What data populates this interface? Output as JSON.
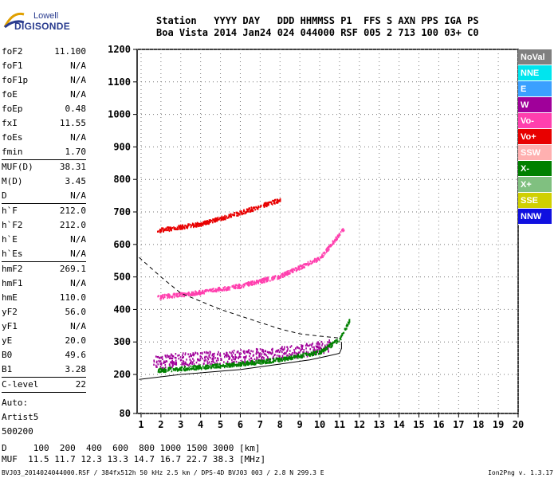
{
  "logo": {
    "line1": "Lowell",
    "line2": "DIGISONDE"
  },
  "header": {
    "line1": "Station   YYYY DAY   DDD HHMMSS P1  FFS S AXN PPS IGA PS",
    "line2": "Boa Vista 2014 Jan24 024 044000 RSF 005 2 713 100 03+ C0"
  },
  "params": [
    [
      {
        "k": "foF2",
        "v": "11.100"
      },
      {
        "k": "foF1",
        "v": "N/A"
      },
      {
        "k": "foF1p",
        "v": "N/A"
      },
      {
        "k": "foE",
        "v": "N/A"
      },
      {
        "k": "foEp",
        "v": "0.48"
      },
      {
        "k": "fxI",
        "v": "11.55"
      },
      {
        "k": "foEs",
        "v": "N/A"
      },
      {
        "k": "fmin",
        "v": "1.70"
      }
    ],
    [
      {
        "k": "MUF(D)",
        "v": "38.31"
      },
      {
        "k": "M(D)",
        "v": "3.45"
      },
      {
        "k": "D",
        "v": "N/A"
      }
    ],
    [
      {
        "k": "h`F",
        "v": "212.0"
      },
      {
        "k": "h`F2",
        "v": "212.0"
      },
      {
        "k": "h`E",
        "v": "N/A"
      },
      {
        "k": "h`Es",
        "v": "N/A"
      }
    ],
    [
      {
        "k": "hmF2",
        "v": "269.1"
      },
      {
        "k": "hmF1",
        "v": "N/A"
      },
      {
        "k": "hmE",
        "v": "110.0"
      },
      {
        "k": "yF2",
        "v": "56.0"
      },
      {
        "k": "yF1",
        "v": "N/A"
      },
      {
        "k": "yE",
        "v": "20.0"
      },
      {
        "k": "B0",
        "v": "49.6"
      },
      {
        "k": "B1",
        "v": "3.28"
      }
    ],
    [
      {
        "k": "C-level",
        "v": "22"
      }
    ]
  ],
  "auto": {
    "l1": "Auto:",
    "l2": "Artist5",
    "l3": "500200"
  },
  "legend": [
    {
      "label": "NoVal",
      "color": "#808080"
    },
    {
      "label": "NNE",
      "color": "#00e5ee"
    },
    {
      "label": "E",
      "color": "#3aa0ff"
    },
    {
      "label": "W",
      "color": "#a0009a"
    },
    {
      "label": "Vo-",
      "color": "#ff3fae"
    },
    {
      "label": "Vo+",
      "color": "#e80000"
    },
    {
      "label": "SSW",
      "color": "#ffb0b0"
    },
    {
      "label": "X-",
      "color": "#008000"
    },
    {
      "label": "X+",
      "color": "#80c080"
    },
    {
      "label": "SSE",
      "color": "#d0d000"
    },
    {
      "label": "NNW",
      "color": "#1010e0"
    }
  ],
  "footer": {
    "line1": "D     100  200  400  600  800 1000 1500 3000 [km]",
    "line2": "MUF  11.5 11.7 12.3 13.3 14.7 16.7 22.7 38.3 [MHz]",
    "line3": "BVJ03_2014024044000.RSF / 384fx512h 50 kHz 2.5 km / DPS-4D BVJ03 003 / 2.8 N 299.3 E",
    "version": "Ion2Png v. 1.3.17"
  },
  "chart_data": {
    "type": "scatter",
    "xlim": [
      0.8,
      20.0
    ],
    "ylim": [
      80,
      1200
    ],
    "x_ticks": [
      1,
      2,
      3,
      4,
      5,
      6,
      7,
      8,
      9,
      10,
      11,
      12,
      13,
      14,
      15,
      16,
      17,
      18,
      19,
      20
    ],
    "y_ticks": [
      80,
      200,
      300,
      400,
      500,
      600,
      700,
      800,
      900,
      1000,
      1100,
      1200
    ],
    "grid": true,
    "legend_position": "right",
    "series": [
      {
        "name": "W",
        "color": "#a0009a",
        "trace": [
          [
            1.6,
            240
          ],
          [
            3,
            248
          ],
          [
            5,
            255
          ],
          [
            7,
            262
          ],
          [
            9,
            275
          ],
          [
            10.5,
            290
          ]
        ]
      },
      {
        "name": "X-",
        "color": "#008000",
        "trace": [
          [
            1.8,
            215
          ],
          [
            4,
            225
          ],
          [
            6,
            235
          ],
          [
            8,
            248
          ],
          [
            10,
            272
          ],
          [
            11,
            310
          ],
          [
            11.5,
            370
          ]
        ]
      },
      {
        "name": "Vo-",
        "color": "#ff3fae",
        "trace": [
          [
            1.8,
            440
          ],
          [
            4,
            455
          ],
          [
            6,
            475
          ],
          [
            8,
            505
          ],
          [
            10,
            560
          ],
          [
            11.2,
            650
          ]
        ]
      },
      {
        "name": "Vo+",
        "color": "#e80000",
        "trace": [
          [
            1.8,
            645
          ],
          [
            4,
            665
          ],
          [
            6,
            700
          ],
          [
            8,
            740
          ]
        ]
      }
    ],
    "profile_solid": [
      [
        0.9,
        185
      ],
      [
        3,
        200
      ],
      [
        6,
        215
      ],
      [
        8,
        232
      ],
      [
        9.5,
        245
      ],
      [
        10.5,
        258
      ],
      [
        11,
        265
      ],
      [
        11.1,
        280
      ],
      [
        11.1,
        300
      ]
    ],
    "profile_dashed": [
      [
        0.9,
        560
      ],
      [
        2,
        500
      ],
      [
        3,
        450
      ],
      [
        5,
        400
      ],
      [
        7,
        360
      ],
      [
        8,
        340
      ],
      [
        9,
        325
      ],
      [
        10,
        318
      ],
      [
        11,
        312
      ]
    ]
  }
}
